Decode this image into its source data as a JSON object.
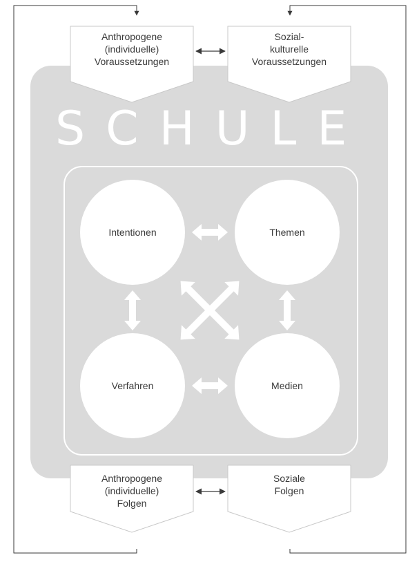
{
  "diagram": {
    "title": "SCHULE",
    "inputs": {
      "left": "Anthropogene\n(individuelle)\nVoraussetzungen",
      "right": "Sozial-\nkulturelle\nVoraussetzungen"
    },
    "outputs": {
      "left": "Anthropogene\n(individuelle)\nFolgen",
      "right": "Soziale\nFolgen"
    },
    "circles": {
      "top_left": "Intentionen",
      "top_right": "Themen",
      "bottom_left": "Verfahren",
      "bottom_right": "Medien"
    },
    "colors": {
      "school_fill": "#dadada",
      "border": "#c8c8c8",
      "line": "#3a3a3a",
      "text": "#3a3a3a",
      "inner_shapes": "#ffffff"
    }
  }
}
